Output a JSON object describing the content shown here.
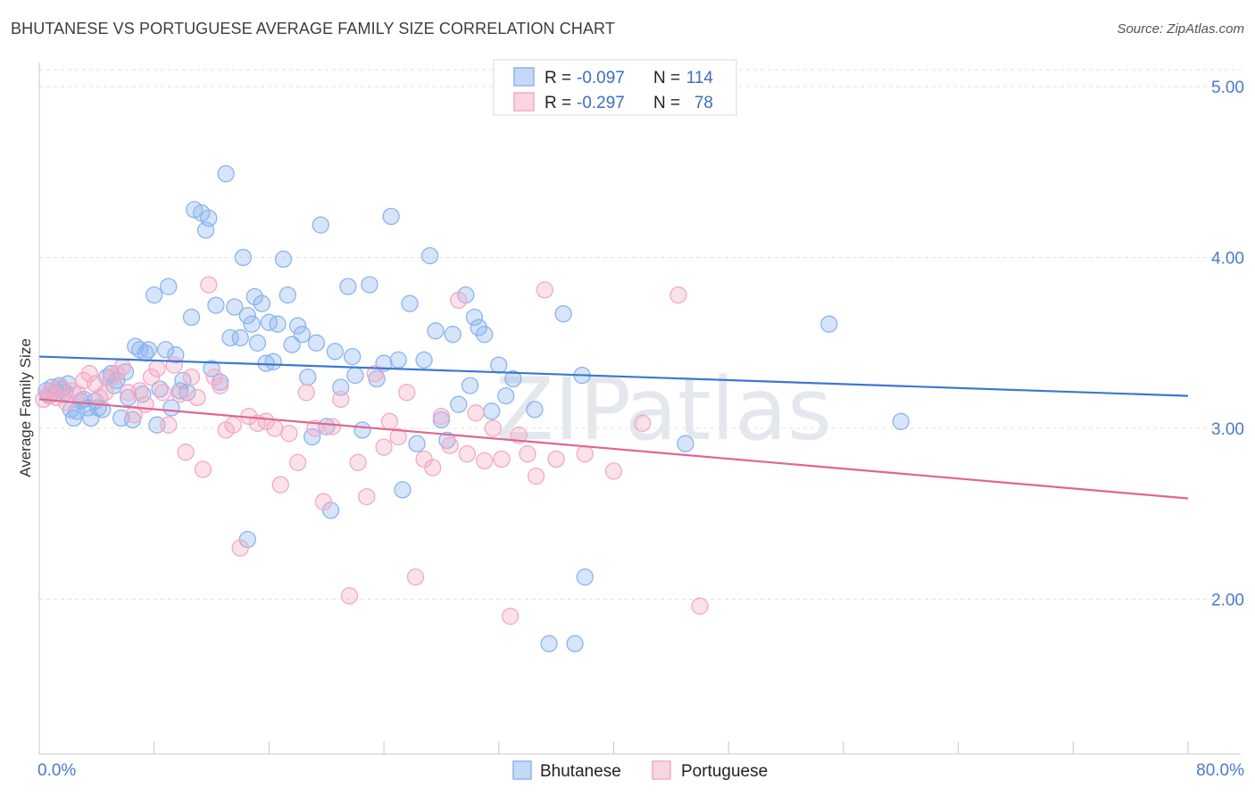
{
  "header": {
    "title": "BHUTANESE VS PORTUGUESE AVERAGE FAMILY SIZE CORRELATION CHART",
    "source": "Source: ZipAtlas.com"
  },
  "watermark": {
    "zip": "ZIP",
    "atlas": "atlas"
  },
  "chart_data": {
    "type": "scatter",
    "title": "BHUTANESE VS PORTUGUESE AVERAGE FAMILY SIZE CORRELATION CHART",
    "xlabel": "",
    "ylabel": "Average Family Size",
    "xlim": [
      0,
      80
    ],
    "ylim": [
      1.0,
      5.1
    ],
    "x_tick_labels": [
      "0.0%",
      "80.0%"
    ],
    "y_ticks": [
      2.0,
      3.0,
      4.0,
      5.0
    ],
    "y_tick_labels": [
      "2.00",
      "3.00",
      "4.00",
      "5.00"
    ],
    "grid": true,
    "legend": {
      "position": "top-center",
      "entries": [
        {
          "r_label": "R =",
          "r_value": "-0.097",
          "n_label": "N =",
          "n_value": "114"
        },
        {
          "r_label": "R =",
          "r_value": "-0.297",
          "n_label": "N =",
          "n_value": "78"
        }
      ]
    },
    "series": [
      {
        "name": "Bhutanese",
        "color": "#8ab4ee",
        "line_color": "#3a78d4",
        "trend": [
          [
            0,
            3.42
          ],
          [
            80,
            3.19
          ]
        ],
        "points": [
          [
            0.5,
            3.22
          ],
          [
            0.7,
            3.19
          ],
          [
            0.9,
            3.24
          ],
          [
            1.2,
            3.21
          ],
          [
            1.4,
            3.25
          ],
          [
            1.6,
            3.23
          ],
          [
            1.8,
            3.21
          ],
          [
            2.0,
            3.26
          ],
          [
            2.2,
            3.11
          ],
          [
            2.4,
            3.06
          ],
          [
            2.6,
            3.1
          ],
          [
            2.9,
            3.16
          ],
          [
            3.1,
            3.17
          ],
          [
            3.4,
            3.12
          ],
          [
            3.6,
            3.06
          ],
          [
            3.9,
            3.16
          ],
          [
            4.1,
            3.12
          ],
          [
            4.4,
            3.11
          ],
          [
            4.7,
            3.3
          ],
          [
            5.0,
            3.32
          ],
          [
            5.2,
            3.25
          ],
          [
            5.4,
            3.28
          ],
          [
            5.7,
            3.06
          ],
          [
            6.0,
            3.33
          ],
          [
            6.2,
            3.18
          ],
          [
            6.5,
            3.05
          ],
          [
            6.7,
            3.48
          ],
          [
            7.0,
            3.46
          ],
          [
            7.2,
            3.2
          ],
          [
            7.4,
            3.44
          ],
          [
            7.6,
            3.46
          ],
          [
            8.0,
            3.78
          ],
          [
            8.2,
            3.02
          ],
          [
            8.4,
            3.23
          ],
          [
            8.8,
            3.46
          ],
          [
            9.0,
            3.83
          ],
          [
            9.2,
            3.12
          ],
          [
            9.5,
            3.43
          ],
          [
            9.8,
            3.22
          ],
          [
            10.0,
            3.28
          ],
          [
            10.3,
            3.21
          ],
          [
            10.6,
            3.65
          ],
          [
            10.8,
            4.28
          ],
          [
            11.3,
            4.26
          ],
          [
            11.6,
            4.16
          ],
          [
            11.8,
            4.23
          ],
          [
            12.0,
            3.35
          ],
          [
            12.3,
            3.72
          ],
          [
            12.6,
            3.27
          ],
          [
            13.0,
            4.49
          ],
          [
            13.3,
            3.53
          ],
          [
            13.6,
            3.71
          ],
          [
            14.0,
            3.53
          ],
          [
            14.2,
            4.0
          ],
          [
            14.5,
            3.66
          ],
          [
            14.8,
            3.61
          ],
          [
            15.0,
            3.77
          ],
          [
            15.2,
            3.5
          ],
          [
            15.5,
            3.73
          ],
          [
            15.8,
            3.38
          ],
          [
            16.0,
            3.62
          ],
          [
            16.3,
            3.39
          ],
          [
            16.6,
            3.61
          ],
          [
            17.0,
            3.99
          ],
          [
            17.3,
            3.78
          ],
          [
            17.6,
            3.49
          ],
          [
            18.0,
            3.6
          ],
          [
            18.3,
            3.55
          ],
          [
            18.7,
            3.3
          ],
          [
            19.0,
            2.95
          ],
          [
            19.3,
            3.5
          ],
          [
            19.6,
            4.19
          ],
          [
            20.0,
            3.01
          ],
          [
            20.3,
            2.52
          ],
          [
            20.6,
            3.45
          ],
          [
            21.0,
            3.24
          ],
          [
            21.5,
            3.83
          ],
          [
            21.8,
            3.42
          ],
          [
            22.0,
            3.31
          ],
          [
            22.5,
            2.99
          ],
          [
            23.0,
            3.84
          ],
          [
            23.5,
            3.29
          ],
          [
            24.0,
            3.38
          ],
          [
            24.5,
            4.24
          ],
          [
            25.0,
            3.4
          ],
          [
            25.3,
            2.64
          ],
          [
            25.8,
            3.73
          ],
          [
            26.3,
            2.91
          ],
          [
            26.8,
            3.4
          ],
          [
            27.2,
            4.01
          ],
          [
            27.6,
            3.57
          ],
          [
            28.0,
            3.05
          ],
          [
            28.4,
            2.93
          ],
          [
            28.8,
            3.55
          ],
          [
            29.2,
            3.14
          ],
          [
            29.7,
            3.78
          ],
          [
            30.0,
            3.25
          ],
          [
            30.3,
            3.65
          ],
          [
            30.6,
            3.59
          ],
          [
            31.0,
            3.55
          ],
          [
            31.5,
            3.1
          ],
          [
            32.0,
            3.37
          ],
          [
            32.5,
            3.19
          ],
          [
            33.0,
            3.29
          ],
          [
            34.5,
            3.11
          ],
          [
            35.5,
            1.74
          ],
          [
            36.5,
            3.67
          ],
          [
            37.3,
            1.74
          ],
          [
            37.8,
            3.31
          ],
          [
            45.0,
            2.91
          ],
          [
            55.0,
            3.61
          ],
          [
            60.0,
            3.04
          ],
          [
            38.0,
            2.13
          ],
          [
            14.5,
            2.35
          ]
        ]
      },
      {
        "name": "Portuguese",
        "color": "#f4a9c3",
        "line_color": "#e0668f",
        "trend": [
          [
            0,
            3.17
          ],
          [
            80,
            2.59
          ]
        ],
        "points": [
          [
            0.3,
            3.17
          ],
          [
            0.6,
            3.2
          ],
          [
            0.9,
            3.22
          ],
          [
            1.2,
            3.18
          ],
          [
            1.5,
            3.24
          ],
          [
            1.9,
            3.15
          ],
          [
            2.3,
            3.22
          ],
          [
            2.7,
            3.2
          ],
          [
            3.1,
            3.28
          ],
          [
            3.5,
            3.32
          ],
          [
            3.9,
            3.26
          ],
          [
            4.2,
            3.18
          ],
          [
            4.6,
            3.21
          ],
          [
            5.0,
            3.3
          ],
          [
            5.4,
            3.32
          ],
          [
            5.8,
            3.36
          ],
          [
            6.2,
            3.21
          ],
          [
            6.6,
            3.08
          ],
          [
            7.0,
            3.22
          ],
          [
            7.4,
            3.14
          ],
          [
            7.8,
            3.3
          ],
          [
            8.2,
            3.35
          ],
          [
            8.6,
            3.21
          ],
          [
            9.0,
            3.02
          ],
          [
            9.4,
            3.37
          ],
          [
            9.8,
            3.2
          ],
          [
            10.2,
            2.86
          ],
          [
            10.6,
            3.3
          ],
          [
            11.0,
            3.18
          ],
          [
            11.4,
            2.76
          ],
          [
            11.8,
            3.84
          ],
          [
            12.2,
            3.3
          ],
          [
            12.6,
            3.25
          ],
          [
            13.0,
            2.99
          ],
          [
            13.5,
            3.02
          ],
          [
            14.0,
            2.3
          ],
          [
            14.6,
            3.07
          ],
          [
            15.2,
            3.03
          ],
          [
            15.8,
            3.04
          ],
          [
            16.4,
            3.0
          ],
          [
            16.8,
            2.67
          ],
          [
            17.4,
            2.97
          ],
          [
            18.0,
            2.8
          ],
          [
            18.6,
            3.21
          ],
          [
            19.2,
            3.0
          ],
          [
            19.8,
            2.57
          ],
          [
            20.4,
            3.01
          ],
          [
            21.0,
            3.17
          ],
          [
            21.6,
            2.02
          ],
          [
            22.2,
            2.8
          ],
          [
            22.8,
            2.6
          ],
          [
            23.4,
            3.32
          ],
          [
            24.0,
            2.89
          ],
          [
            24.4,
            3.04
          ],
          [
            25.0,
            2.95
          ],
          [
            25.6,
            3.21
          ],
          [
            26.2,
            2.13
          ],
          [
            26.8,
            2.82
          ],
          [
            27.4,
            2.77
          ],
          [
            28.0,
            3.07
          ],
          [
            28.6,
            2.9
          ],
          [
            29.2,
            3.75
          ],
          [
            29.8,
            2.85
          ],
          [
            30.4,
            3.09
          ],
          [
            31.0,
            2.81
          ],
          [
            31.6,
            3.0
          ],
          [
            32.2,
            2.82
          ],
          [
            32.8,
            1.9
          ],
          [
            33.4,
            2.96
          ],
          [
            34.0,
            2.85
          ],
          [
            34.6,
            2.72
          ],
          [
            35.2,
            3.81
          ],
          [
            36.0,
            2.82
          ],
          [
            38.0,
            2.85
          ],
          [
            40.0,
            2.75
          ],
          [
            42.0,
            3.03
          ],
          [
            44.5,
            3.78
          ],
          [
            46.0,
            1.96
          ]
        ]
      }
    ]
  }
}
